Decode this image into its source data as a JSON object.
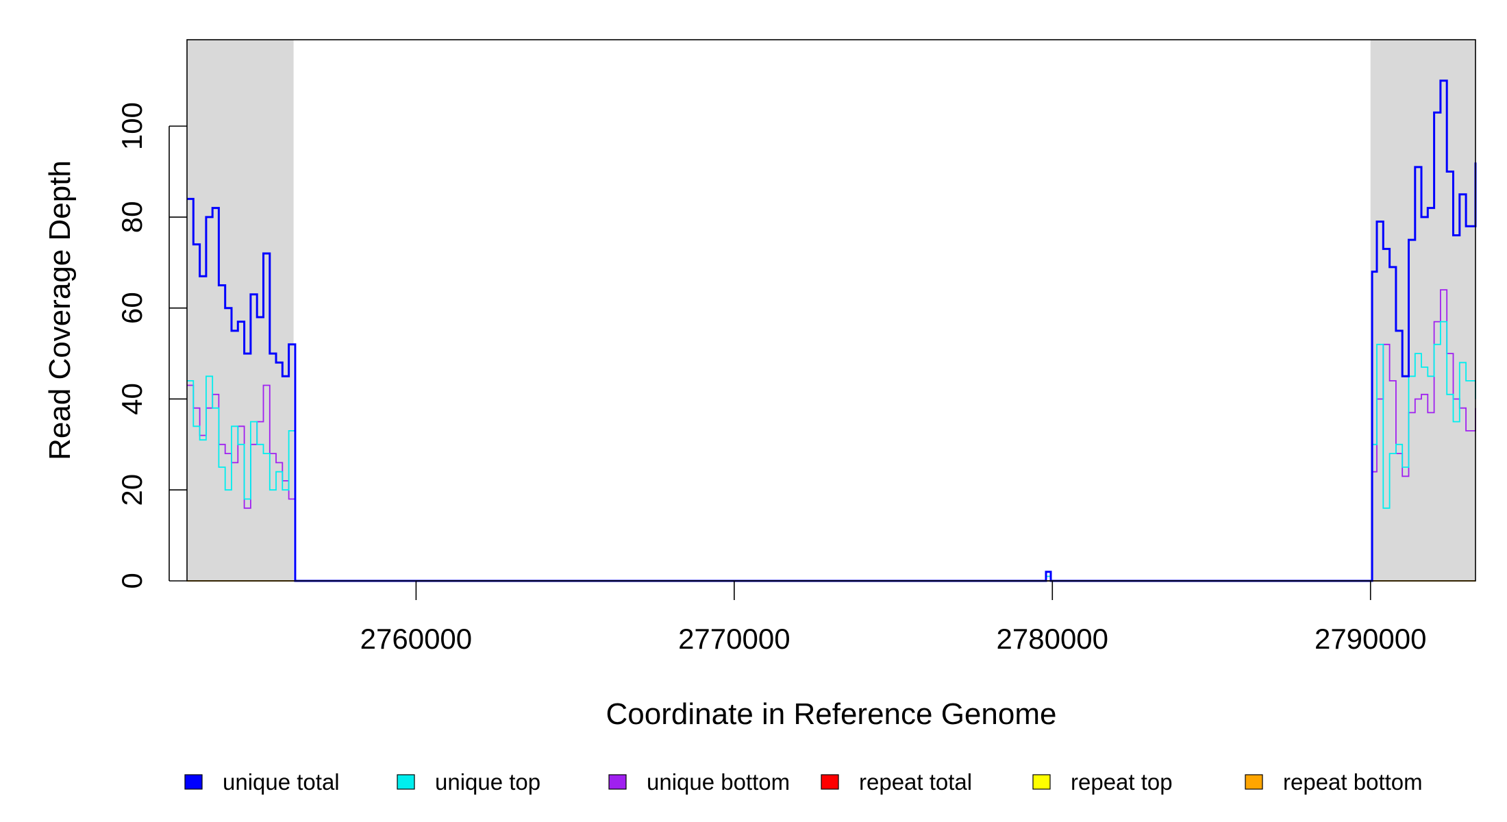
{
  "chart_data": {
    "type": "line",
    "title": "",
    "xlabel": "Coordinate in Reference Genome",
    "ylabel": "Read Coverage Depth",
    "xlim": [
      2752800,
      2793300
    ],
    "ylim": [
      0,
      119
    ],
    "x_ticks": [
      2760000,
      2770000,
      2780000,
      2790000
    ],
    "y_ticks": [
      0,
      20,
      40,
      60,
      80,
      100
    ],
    "grid": false,
    "legend_position": "bottom",
    "shaded_regions": [
      {
        "x": [
          2752800,
          2756150
        ],
        "color": "#d9d9d9"
      },
      {
        "x": [
          2790000,
          2793300
        ],
        "color": "#d9d9d9"
      }
    ],
    "series": [
      {
        "name": "unique total",
        "color": "#0000ff",
        "x": [
          2752800,
          2753000,
          2753200,
          2753400,
          2753600,
          2753800,
          2754000,
          2754200,
          2754400,
          2754600,
          2754800,
          2755000,
          2755200,
          2755400,
          2755600,
          2755800,
          2756000,
          2756150,
          2756200,
          2779700,
          2779800,
          2779950,
          2780000,
          2790000,
          2790050,
          2790200,
          2790400,
          2790600,
          2790800,
          2791000,
          2791200,
          2791400,
          2791600,
          2791800,
          2792000,
          2792200,
          2792400,
          2792600,
          2792800,
          2793000,
          2793300
        ],
        "values": [
          84,
          74,
          67,
          80,
          82,
          65,
          60,
          55,
          57,
          50,
          63,
          58,
          72,
          50,
          48,
          45,
          52,
          52,
          0,
          0,
          2,
          0,
          0,
          0,
          68,
          79,
          73,
          69,
          55,
          45,
          75,
          91,
          80,
          82,
          103,
          110,
          90,
          76,
          85,
          78,
          92
        ]
      },
      {
        "name": "unique top",
        "color": "#00eeee",
        "x": [
          2752800,
          2753000,
          2753200,
          2753400,
          2753600,
          2753800,
          2754000,
          2754200,
          2754400,
          2754600,
          2754800,
          2755000,
          2755200,
          2755400,
          2755600,
          2755800,
          2756000,
          2756150,
          2756200,
          2779700,
          2779800,
          2779950,
          2780000,
          2790000,
          2790050,
          2790200,
          2790400,
          2790600,
          2790800,
          2791000,
          2791200,
          2791400,
          2791600,
          2791800,
          2792000,
          2792200,
          2792400,
          2792600,
          2792800,
          2793000,
          2793300
        ],
        "values": [
          44,
          34,
          31,
          45,
          38,
          25,
          20,
          34,
          30,
          18,
          35,
          30,
          28,
          20,
          24,
          20,
          33,
          33,
          0,
          0,
          1,
          0,
          0,
          0,
          30,
          52,
          16,
          28,
          30,
          25,
          45,
          50,
          47,
          45,
          52,
          57,
          41,
          35,
          48,
          44,
          40
        ]
      },
      {
        "name": "unique bottom",
        "color": "#a020f0",
        "x": [
          2752800,
          2753000,
          2753200,
          2753400,
          2753600,
          2753800,
          2754000,
          2754200,
          2754400,
          2754600,
          2754800,
          2755000,
          2755200,
          2755400,
          2755600,
          2755800,
          2756000,
          2756150,
          2756200,
          2779700,
          2779800,
          2779950,
          2780000,
          2790000,
          2790050,
          2790200,
          2790400,
          2790600,
          2790800,
          2791000,
          2791200,
          2791400,
          2791600,
          2791800,
          2792000,
          2792200,
          2792400,
          2792600,
          2792800,
          2793000,
          2793300
        ],
        "values": [
          43,
          38,
          32,
          38,
          41,
          30,
          28,
          26,
          34,
          16,
          30,
          35,
          43,
          28,
          26,
          22,
          18,
          18,
          0,
          0,
          1,
          0,
          0,
          0,
          24,
          40,
          52,
          44,
          28,
          23,
          37,
          40,
          41,
          37,
          57,
          64,
          50,
          40,
          38,
          33,
          38
        ]
      },
      {
        "name": "repeat total",
        "color": "#ff0000",
        "x": [
          2752800,
          2793300
        ],
        "values": [
          0,
          0
        ]
      },
      {
        "name": "repeat top",
        "color": "#ffff00",
        "x": [
          2752800,
          2793300
        ],
        "values": [
          0,
          0
        ]
      },
      {
        "name": "repeat bottom",
        "color": "#ffa500",
        "x": [
          2752800,
          2793300
        ],
        "values": [
          0,
          0
        ]
      }
    ]
  }
}
